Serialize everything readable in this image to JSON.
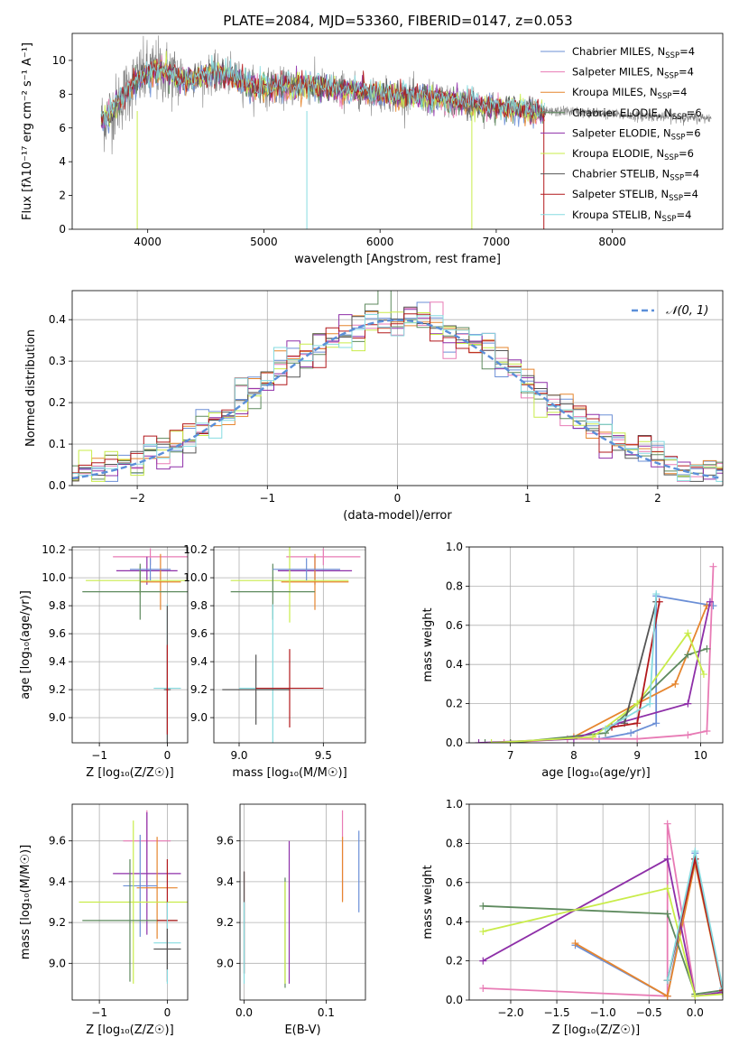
{
  "title": "PLATE=2084, MJD=53360, FIBERID=0147, z=0.053",
  "colors": {
    "chab_miles": "#6b8fd6",
    "salp_miles": "#e87bb5",
    "krou_miles": "#e6852e",
    "chab_elodie": "#5e8a5e",
    "salp_elodie": "#8e2fa8",
    "krou_elodie": "#c9ec4a",
    "chab_stelib": "#555555",
    "salp_stelib": "#b2181c",
    "krou_stelib": "#86dbe0",
    "data": "#808080",
    "gauss": "#5b8fd9"
  },
  "legend": [
    {
      "key": "chab_miles",
      "label": "Chabrier MILES, N",
      "sub": "SSP",
      "tail": "=4"
    },
    {
      "key": "salp_miles",
      "label": "Salpeter MILES, N",
      "sub": "SSP",
      "tail": "=4"
    },
    {
      "key": "krou_miles",
      "label": "Kroupa MILES, N",
      "sub": "SSP",
      "tail": "=4"
    },
    {
      "key": "chab_elodie",
      "label": "Chabrier ELODIE, N",
      "sub": "SSP",
      "tail": "=6"
    },
    {
      "key": "salp_elodie",
      "label": "Salpeter ELODIE, N",
      "sub": "SSP",
      "tail": "=6"
    },
    {
      "key": "krou_elodie",
      "label": "Kroupa ELODIE, N",
      "sub": "SSP",
      "tail": "=6"
    },
    {
      "key": "chab_stelib",
      "label": "Chabrier STELIB, N",
      "sub": "SSP",
      "tail": "=4"
    },
    {
      "key": "salp_stelib",
      "label": "Salpeter STELIB, N",
      "sub": "SSP",
      "tail": "=4"
    },
    {
      "key": "krou_stelib",
      "label": "Kroupa STELIB, N",
      "sub": "SSP",
      "tail": "=4"
    }
  ],
  "chart_data": [
    {
      "id": "spectrum",
      "type": "line",
      "xlabel": "wavelength [Angstrom, rest frame]",
      "ylabel": "Flux [fλ10⁻¹⁷ erg cm⁻² s⁻¹ A⁻¹]",
      "xlim": [
        3350,
        8950
      ],
      "ylim": [
        0,
        11.6
      ],
      "xticks": [
        4000,
        5000,
        6000,
        7000,
        8000
      ],
      "yticks": [
        0,
        2,
        4,
        6,
        8,
        10
      ],
      "grid": false,
      "spectrum_anchor_x": [
        3600,
        3700,
        3800,
        3900,
        4000,
        4100,
        4200,
        4300,
        4400,
        4500,
        4600,
        4700,
        4800,
        4900,
        5000,
        5200,
        5400,
        5600,
        5800,
        6000,
        6200,
        6400,
        6600,
        6800,
        7000,
        7200,
        7400,
        7600,
        7800,
        8000,
        8200,
        8400,
        8600,
        8800
      ],
      "spectrum_anchor_y": [
        6.4,
        7.0,
        8.0,
        8.8,
        9.2,
        9.4,
        9.2,
        8.8,
        9.0,
        9.1,
        9.2,
        9.1,
        8.8,
        8.5,
        8.4,
        8.4,
        8.5,
        8.3,
        8.2,
        8.0,
        7.9,
        7.8,
        7.6,
        7.4,
        7.2,
        7.1,
        6.9,
        7.0,
        6.9,
        6.8,
        6.7,
        6.7,
        6.6,
        6.6
      ]
    },
    {
      "id": "residuals",
      "type": "histogram",
      "xlabel": "(data-model)/error",
      "ylabel": "Normed distribution",
      "xlim": [
        -2.5,
        2.5
      ],
      "ylim": [
        0,
        0.47
      ],
      "xticks": [
        -2,
        -1,
        0,
        1,
        2
      ],
      "yticks": [
        0.0,
        0.1,
        0.2,
        0.3,
        0.4
      ],
      "grid": true,
      "legend_label": "𝒩(0, 1)",
      "bin_width": 0.1
    },
    {
      "id": "age_vs_Z",
      "type": "errorbar",
      "xlabel": "Z [log₁₀(Z/Z☉)]",
      "ylabel": "age  [log₁₀(age/yr)]",
      "xlim": [
        -1.4,
        0.3
      ],
      "ylim": [
        8.82,
        10.22
      ],
      "xticks": [
        -1,
        0
      ],
      "yticks": [
        9.0,
        9.2,
        9.4,
        9.6,
        9.8,
        10.0,
        10.2
      ],
      "points": [
        {
          "s": "salp_miles",
          "x": -0.25,
          "y": 10.15,
          "xe": 0.55,
          "ye": 0.06
        },
        {
          "s": "salp_elodie",
          "x": -0.3,
          "y": 10.05,
          "xe": 0.45,
          "ye": 0.1
        },
        {
          "s": "krou_miles",
          "x": -0.1,
          "y": 9.97,
          "xe": 0.3,
          "ye": 0.2
        },
        {
          "s": "krou_elodie",
          "x": -0.4,
          "y": 9.98,
          "xe": 0.8,
          "ye": 0.1
        },
        {
          "s": "chab_elodie",
          "x": -0.4,
          "y": 9.9,
          "xe": 0.85,
          "ye": 0.2
        },
        {
          "s": "chab_miles",
          "x": -0.25,
          "y": 10.06,
          "xe": 0.3,
          "ye": 0.08
        },
        {
          "s": "krou_stelib",
          "x": 0.0,
          "y": 9.21,
          "xe": 0.2,
          "ye": 0.6
        },
        {
          "s": "chab_stelib",
          "x": 0.0,
          "y": 9.2,
          "xe": 0.05,
          "ye": 0.6
        },
        {
          "s": "salp_stelib",
          "x": 0.0,
          "y": 9.2,
          "xe": 0.02,
          "ye": 0.32
        }
      ]
    },
    {
      "id": "age_vs_mass",
      "type": "errorbar",
      "xlabel": "mass [log₁₀(M/M☉)]",
      "ylabel": "",
      "xlim": [
        8.85,
        9.75
      ],
      "ylim": [
        8.82,
        10.22
      ],
      "xticks": [
        9.0,
        9.5
      ],
      "yticks": [
        9.0,
        9.2,
        9.4,
        9.6,
        9.8,
        10.0,
        10.2
      ],
      "points": [
        {
          "s": "salp_miles",
          "x": 9.5,
          "y": 10.15,
          "xe": 0.22,
          "ye": 0.06
        },
        {
          "s": "salp_elodie",
          "x": 9.45,
          "y": 10.05,
          "xe": 0.22,
          "ye": 0.1
        },
        {
          "s": "krou_miles",
          "x": 9.45,
          "y": 9.97,
          "xe": 0.2,
          "ye": 0.2
        },
        {
          "s": "krou_elodie",
          "x": 9.3,
          "y": 9.98,
          "xe": 0.35,
          "ye": 0.3
        },
        {
          "s": "chab_elodie",
          "x": 9.2,
          "y": 9.9,
          "xe": 0.25,
          "ye": 0.2
        },
        {
          "s": "chab_miles",
          "x": 9.4,
          "y": 10.06,
          "xe": 0.2,
          "ye": 0.08
        },
        {
          "s": "krou_stelib",
          "x": 9.2,
          "y": 9.21,
          "xe": 0.2,
          "ye": 0.6
        },
        {
          "s": "chab_stelib",
          "x": 9.1,
          "y": 9.2,
          "xe": 0.2,
          "ye": 0.25
        },
        {
          "s": "salp_stelib",
          "x": 9.3,
          "y": 9.21,
          "xe": 0.2,
          "ye": 0.28
        }
      ]
    },
    {
      "id": "weight_vs_age",
      "type": "line",
      "xlabel": "age  [log₁₀(age/yr)]",
      "ylabel": "mass weight",
      "xlim": [
        6.35,
        10.35
      ],
      "ylim": [
        0,
        1.0
      ],
      "xticks": [
        7,
        8,
        9,
        10
      ],
      "yticks": [
        0.0,
        0.2,
        0.4,
        0.6,
        0.8,
        1.0
      ],
      "series": [
        {
          "s": "chab_miles",
          "x": [
            8.4,
            8.9,
            9.3,
            9.3,
            10.2
          ],
          "y": [
            0.02,
            0.05,
            0.1,
            0.75,
            0.7
          ]
        },
        {
          "s": "salp_miles",
          "x": [
            6.9,
            7.9,
            9.0,
            9.8,
            10.1,
            10.2
          ],
          "y": [
            0.0,
            0.02,
            0.02,
            0.04,
            0.06,
            0.9
          ]
        },
        {
          "s": "krou_miles",
          "x": [
            7.0,
            8.0,
            9.0,
            9.6,
            10.1
          ],
          "y": [
            0.0,
            0.03,
            0.2,
            0.3,
            0.7
          ]
        },
        {
          "s": "chab_elodie",
          "x": [
            6.6,
            7.0,
            8.5,
            9.0,
            9.8,
            10.1
          ],
          "y": [
            0.0,
            0.0,
            0.05,
            0.2,
            0.45,
            0.48
          ]
        },
        {
          "s": "salp_elodie",
          "x": [
            6.5,
            8.0,
            8.7,
            9.8,
            10.15
          ],
          "y": [
            0.0,
            0.02,
            0.1,
            0.2,
            0.72
          ]
        },
        {
          "s": "krou_elodie",
          "x": [
            6.7,
            8.3,
            9.0,
            9.8,
            10.05
          ],
          "y": [
            0.0,
            0.03,
            0.2,
            0.56,
            0.35
          ]
        },
        {
          "s": "chab_stelib",
          "x": [
            8.8,
            9.3
          ],
          "y": [
            0.1,
            0.72
          ]
        },
        {
          "s": "salp_stelib",
          "x": [
            8.6,
            9.0,
            9.35
          ],
          "y": [
            0.08,
            0.1,
            0.72
          ]
        },
        {
          "s": "krou_stelib",
          "x": [
            8.5,
            9.2,
            9.3
          ],
          "y": [
            0.07,
            0.2,
            0.76
          ]
        }
      ]
    },
    {
      "id": "mass_vs_Z",
      "type": "errorbar",
      "xlabel": "Z [log₁₀(Z/Z☉)]",
      "ylabel": "mass [log₁₀(M/M☉)]",
      "xlim": [
        -1.4,
        0.3
      ],
      "ylim": [
        8.82,
        9.78
      ],
      "xticks": [
        -1,
        0
      ],
      "yticks": [
        9.0,
        9.2,
        9.4,
        9.6
      ],
      "points": [
        {
          "s": "salp_miles",
          "x": -0.3,
          "y": 9.6,
          "xe": 0.35,
          "ye": 0.15
        },
        {
          "s": "salp_elodie",
          "x": -0.3,
          "y": 9.44,
          "xe": 0.5,
          "ye": 0.3
        },
        {
          "s": "krou_miles",
          "x": -0.15,
          "y": 9.37,
          "xe": 0.3,
          "ye": 0.25
        },
        {
          "s": "chab_miles",
          "x": -0.4,
          "y": 9.38,
          "xe": 0.25,
          "ye": 0.25
        },
        {
          "s": "krou_elodie",
          "x": -0.5,
          "y": 9.3,
          "xe": 0.8,
          "ye": 0.4
        },
        {
          "s": "chab_elodie",
          "x": -0.55,
          "y": 9.21,
          "xe": 0.7,
          "ye": 0.3
        },
        {
          "s": "salp_stelib",
          "x": 0.0,
          "y": 9.21,
          "xe": 0.15,
          "ye": 0.3
        },
        {
          "s": "krou_stelib",
          "x": 0.0,
          "y": 9.1,
          "xe": 0.2,
          "ye": 0.2
        },
        {
          "s": "chab_stelib",
          "x": 0.0,
          "y": 9.07,
          "xe": 0.2,
          "ye": 0.1
        }
      ]
    },
    {
      "id": "mass_vs_ebv",
      "type": "errorbar",
      "xlabel": "E(B-V)",
      "ylabel": "",
      "xlim": [
        -0.005,
        0.148
      ],
      "ylim": [
        8.82,
        9.78
      ],
      "xticks": [
        0.0,
        0.1
      ],
      "yticks": [
        9.0,
        9.2,
        9.4,
        9.6
      ],
      "points": [
        {
          "s": "chab_miles",
          "x": 0.14,
          "y": 9.45,
          "xe": 0,
          "ye": 0.2
        },
        {
          "s": "salp_miles",
          "x": 0.12,
          "y": 9.53,
          "xe": 0,
          "ye": 0.22
        },
        {
          "s": "krou_miles",
          "x": 0.12,
          "y": 9.46,
          "xe": 0,
          "ye": 0.16
        },
        {
          "s": "salp_elodie",
          "x": 0.055,
          "y": 9.25,
          "xe": 0,
          "ye": 0.35
        },
        {
          "s": "chab_elodie",
          "x": 0.05,
          "y": 9.15,
          "xe": 0,
          "ye": 0.27
        },
        {
          "s": "krou_elodie",
          "x": 0.05,
          "y": 9.15,
          "xe": 0,
          "ye": 0.25
        },
        {
          "s": "salp_stelib",
          "x": 0.0,
          "y": 9.2,
          "xe": 0,
          "ye": 0.25
        },
        {
          "s": "chab_stelib",
          "x": 0.0,
          "y": 9.2,
          "xe": 0,
          "ye": 0.25
        },
        {
          "s": "krou_stelib",
          "x": 0.0,
          "y": 9.1,
          "xe": 0,
          "ye": 0.2
        }
      ]
    },
    {
      "id": "weight_vs_Z",
      "type": "line",
      "xlabel": "Z [log₁₀(Z/Z☉)]",
      "ylabel": "mass weight",
      "xlim": [
        -2.45,
        0.3
      ],
      "ylim": [
        0,
        1.0
      ],
      "xticks": [
        -2.0,
        -1.5,
        -1.0,
        -0.5,
        0.0
      ],
      "yticks": [
        0.0,
        0.2,
        0.4,
        0.6,
        0.8,
        1.0
      ],
      "series": [
        {
          "s": "chab_miles",
          "x": [
            -1.3,
            -0.3,
            0.0,
            0.3
          ],
          "y": [
            0.28,
            0.02,
            0.75,
            0.03
          ]
        },
        {
          "s": "salp_miles",
          "x": [
            -2.3,
            -0.3,
            -0.3,
            0.0
          ],
          "y": [
            0.06,
            0.02,
            0.9,
            0.03
          ]
        },
        {
          "s": "krou_miles",
          "x": [
            -1.3,
            -0.3,
            0.0,
            0.3
          ],
          "y": [
            0.29,
            0.02,
            0.7,
            0.04
          ]
        },
        {
          "s": "chab_elodie",
          "x": [
            -2.3,
            -0.3,
            0.0,
            0.3
          ],
          "y": [
            0.48,
            0.44,
            0.03,
            0.05
          ]
        },
        {
          "s": "salp_elodie",
          "x": [
            -2.3,
            -0.3,
            0.0,
            0.3
          ],
          "y": [
            0.2,
            0.72,
            0.02,
            0.04
          ]
        },
        {
          "s": "krou_elodie",
          "x": [
            -2.3,
            -0.3,
            0.0,
            0.3
          ],
          "y": [
            0.35,
            0.57,
            0.02,
            0.03
          ]
        },
        {
          "s": "chab_stelib",
          "x": [
            -0.3,
            0.0,
            0.3
          ],
          "y": [
            0.1,
            0.72,
            0.05
          ]
        },
        {
          "s": "salp_stelib",
          "x": [
            -0.3,
            0.0,
            0.3
          ],
          "y": [
            0.1,
            0.72,
            0.05
          ]
        },
        {
          "s": "krou_stelib",
          "x": [
            -0.3,
            0.0,
            0.3
          ],
          "y": [
            0.1,
            0.76,
            0.06
          ]
        }
      ]
    }
  ]
}
